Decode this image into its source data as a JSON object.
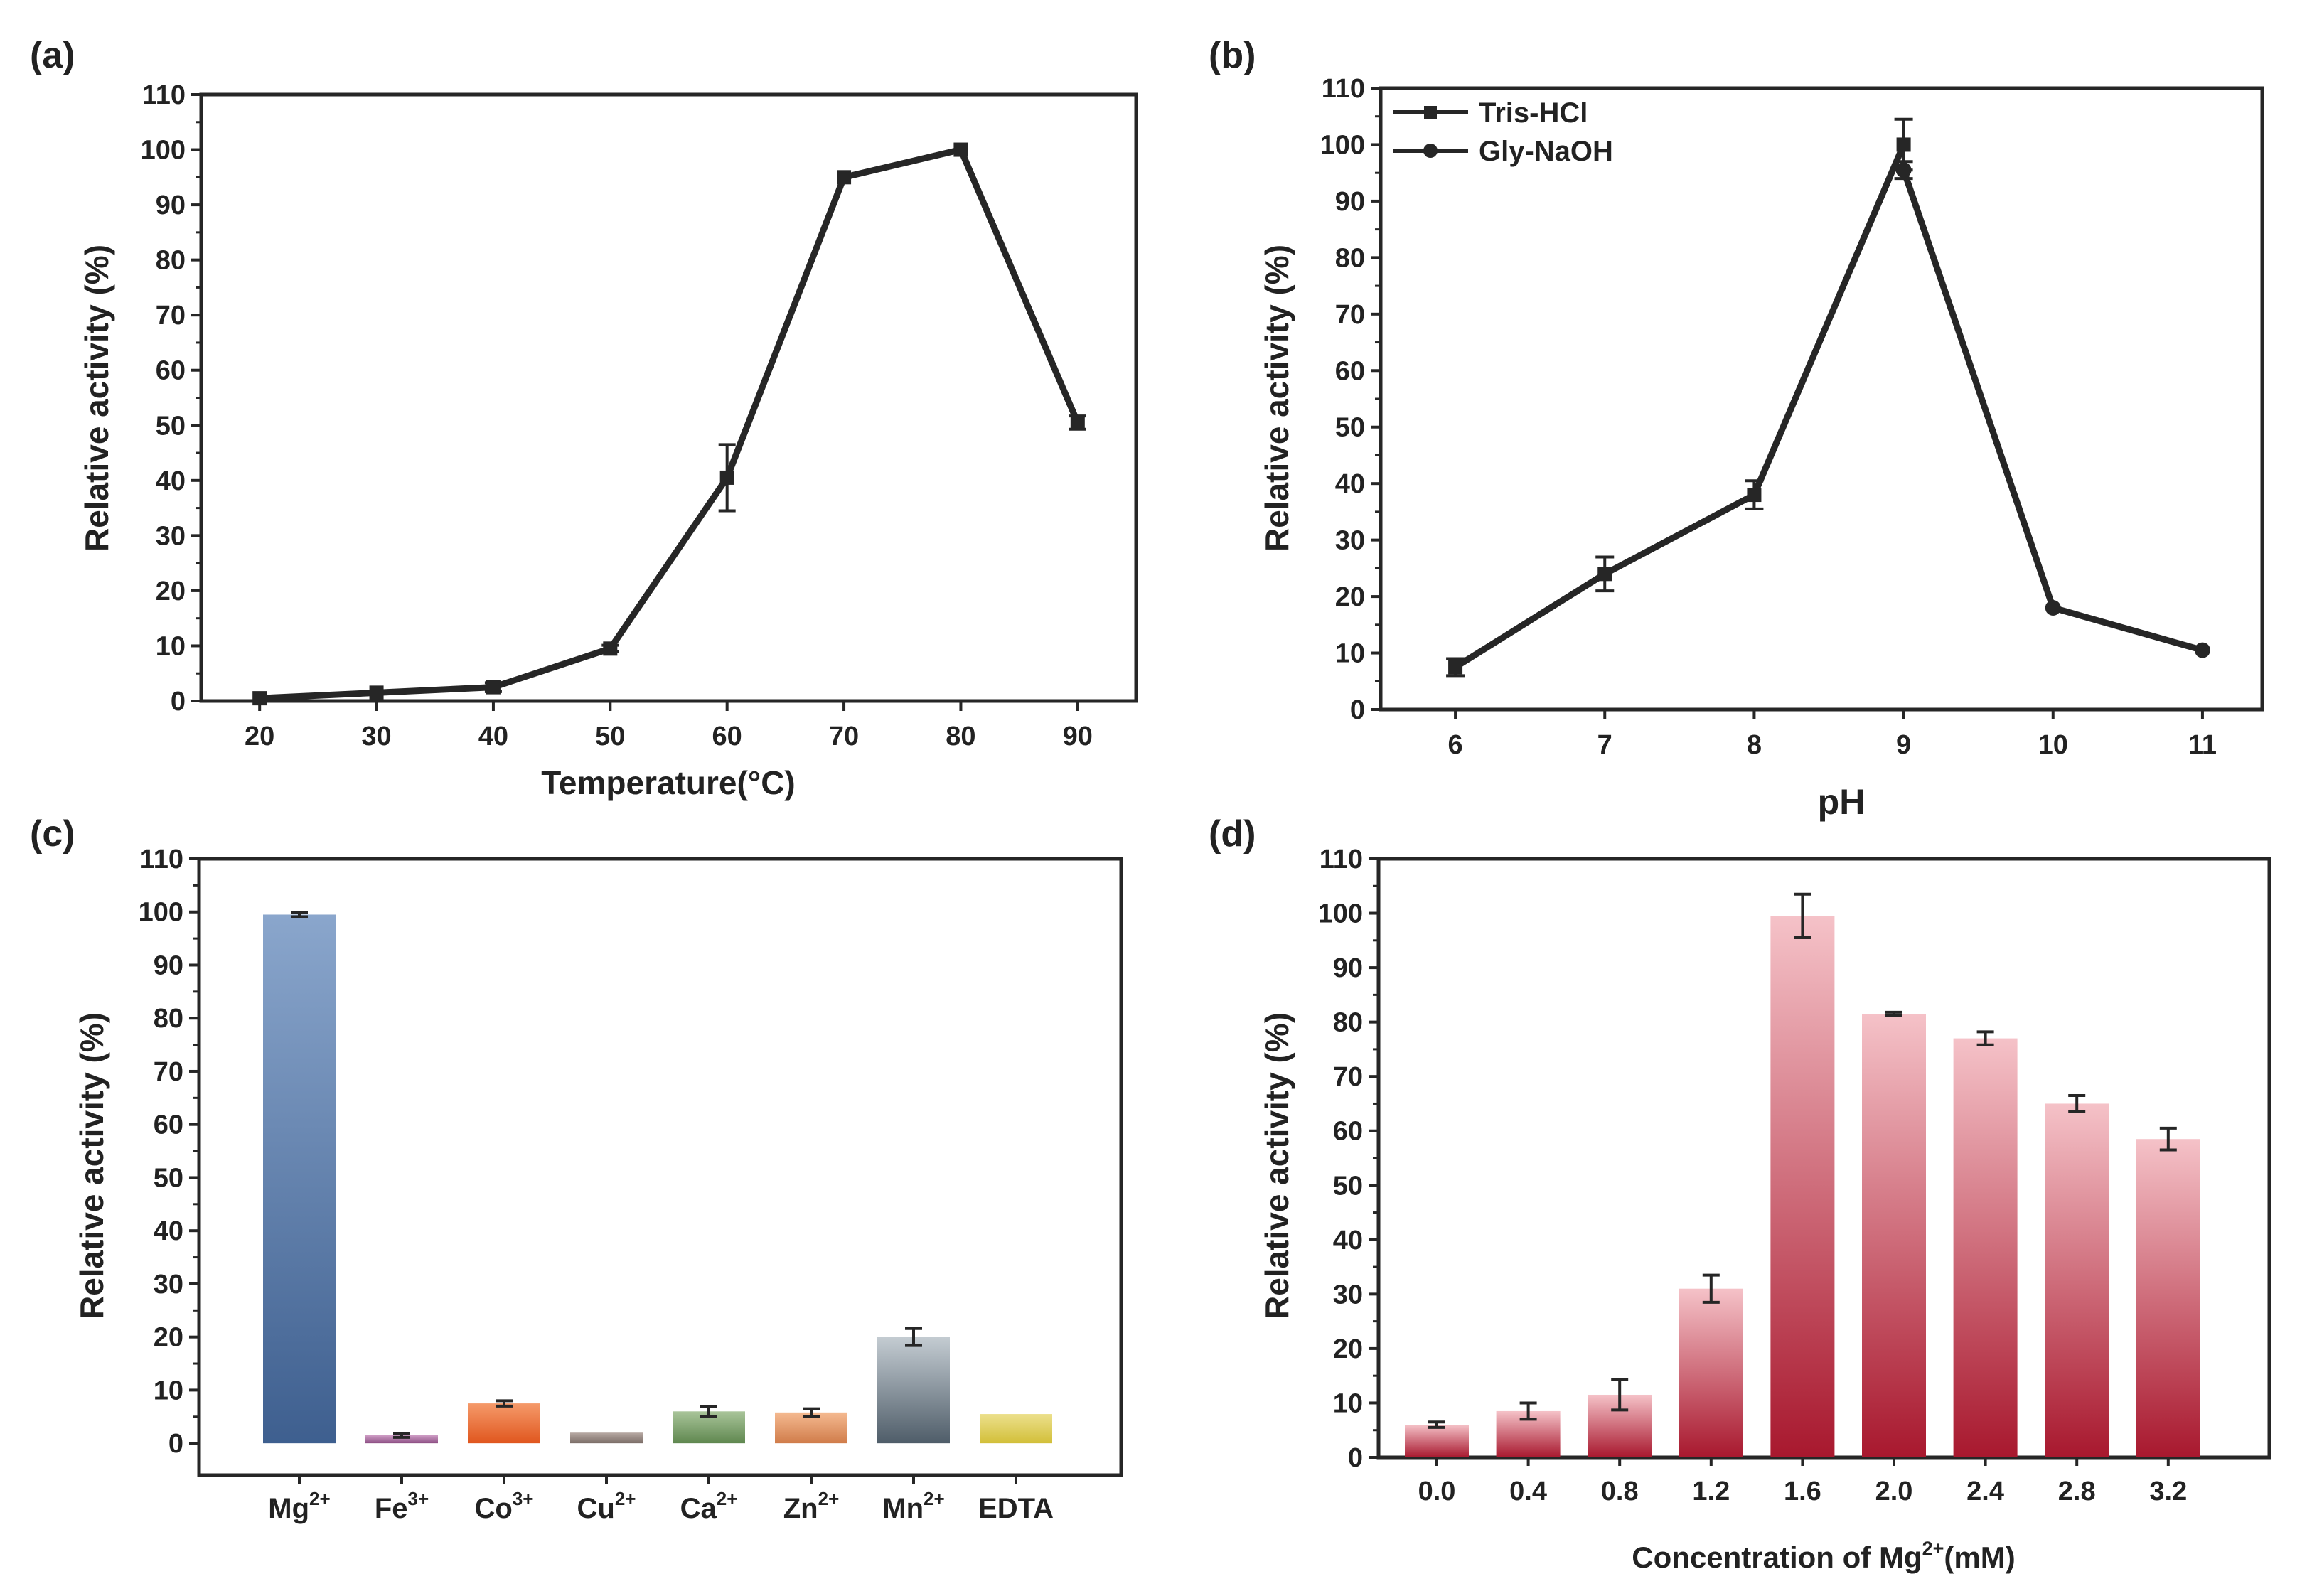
{
  "colors": {
    "ink": "#262626",
    "line": "#262626"
  },
  "chart_data": [
    {
      "panel": "(a)",
      "type": "line",
      "xlabel": "Temperature(°C)",
      "ylabel": "Relative activity (%)",
      "xlim": [
        15,
        95
      ],
      "ylim": [
        0,
        110
      ],
      "xticks": [
        "20",
        "30",
        "40",
        "50",
        "60",
        "70",
        "80",
        "90"
      ],
      "yticks": [
        "0",
        "10",
        "20",
        "30",
        "40",
        "50",
        "60",
        "70",
        "80",
        "90",
        "100",
        "110"
      ],
      "series": [
        {
          "name": "activity",
          "x": [
            20,
            30,
            40,
            50,
            60,
            70,
            80,
            90
          ],
          "values": [
            0.5,
            1.5,
            2.5,
            9.5,
            40.5,
            95,
            100,
            50.5
          ],
          "err": [
            0.4,
            0.4,
            0.8,
            0.6,
            6,
            0.5,
            0.5,
            1.2
          ]
        }
      ]
    },
    {
      "panel": "(b)",
      "type": "line",
      "xlabel": "pH",
      "ylabel": "Relative activity (%)",
      "xlim": [
        5.5,
        11.4
      ],
      "ylim": [
        0,
        110
      ],
      "xticks": [
        "6",
        "7",
        "8",
        "9",
        "10",
        "11"
      ],
      "yticks": [
        "0",
        "10",
        "20",
        "30",
        "40",
        "50",
        "60",
        "70",
        "80",
        "90",
        "100",
        "110"
      ],
      "legend": [
        "Tris-HCl",
        "Gly-NaOH"
      ],
      "series": [
        {
          "name": "Tris-HCl",
          "marker": "square",
          "x": [
            6,
            7,
            8,
            9
          ],
          "values": [
            7.5,
            24,
            38,
            100
          ],
          "err": [
            1.5,
            3,
            2.5,
            4.5
          ]
        },
        {
          "name": "Gly-NaOH",
          "marker": "circle",
          "x": [
            9,
            10,
            11
          ],
          "values": [
            95.5,
            18,
            10.5
          ],
          "err": [
            1.5,
            0.5,
            0.5
          ]
        }
      ]
    },
    {
      "panel": "(c)",
      "type": "bar",
      "ylabel": "Relative activity (%)",
      "ylim": [
        -6,
        110
      ],
      "yticks": [
        "0",
        "10",
        "20",
        "30",
        "40",
        "50",
        "60",
        "70",
        "80",
        "90",
        "100",
        "110"
      ],
      "categories": [
        {
          "base": "Mg",
          "sup": "2+"
        },
        {
          "base": "Fe",
          "sup": "3+"
        },
        {
          "base": "Co",
          "sup": "3+"
        },
        {
          "base": "Cu",
          "sup": "2+"
        },
        {
          "base": "Ca",
          "sup": "2+"
        },
        {
          "base": "Zn",
          "sup": "2+"
        },
        {
          "base": "Mn",
          "sup": "2+"
        },
        {
          "base": "EDTA",
          "sup": ""
        }
      ],
      "values": [
        99.5,
        1.5,
        7.5,
        2,
        6,
        5.8,
        20,
        5.5
      ],
      "err": [
        0.4,
        0.4,
        0.5,
        0,
        0.9,
        0.7,
        1.6,
        0
      ],
      "bar_colors": [
        [
          "#8aa6cc",
          "#3e5f8f"
        ],
        [
          "#cf9ec6",
          "#8d4f84"
        ],
        [
          "#f59a6a",
          "#e0561e"
        ],
        [
          "#b7a9a3",
          "#7c6e68"
        ],
        [
          "#a9c59a",
          "#5f874f"
        ],
        [
          "#f5ba91",
          "#d07c4a"
        ],
        [
          "#c4ccd2",
          "#4f5d69"
        ],
        [
          "#ece08c",
          "#d2bf39"
        ]
      ]
    },
    {
      "panel": "(d)",
      "type": "bar",
      "xlabel": {
        "base": "Concentration of Mg",
        "sup": "2+",
        "tail": "(mM)"
      },
      "ylabel": "Relative activity (%)",
      "ylim": [
        0,
        110
      ],
      "yticks": [
        "0",
        "10",
        "20",
        "30",
        "40",
        "50",
        "60",
        "70",
        "80",
        "90",
        "100",
        "110"
      ],
      "categories": [
        "0.0",
        "0.4",
        "0.8",
        "1.2",
        "1.6",
        "2.0",
        "2.4",
        "2.8",
        "3.2"
      ],
      "values": [
        6,
        8.5,
        11.5,
        31,
        99.5,
        81.5,
        77,
        65,
        58.5
      ],
      "err": [
        0.5,
        1.5,
        2.8,
        2.5,
        4,
        0.3,
        1.2,
        1.5,
        2
      ],
      "bar_colors": [
        [
          "#f5c2c8",
          "#a8182e"
        ]
      ]
    }
  ]
}
